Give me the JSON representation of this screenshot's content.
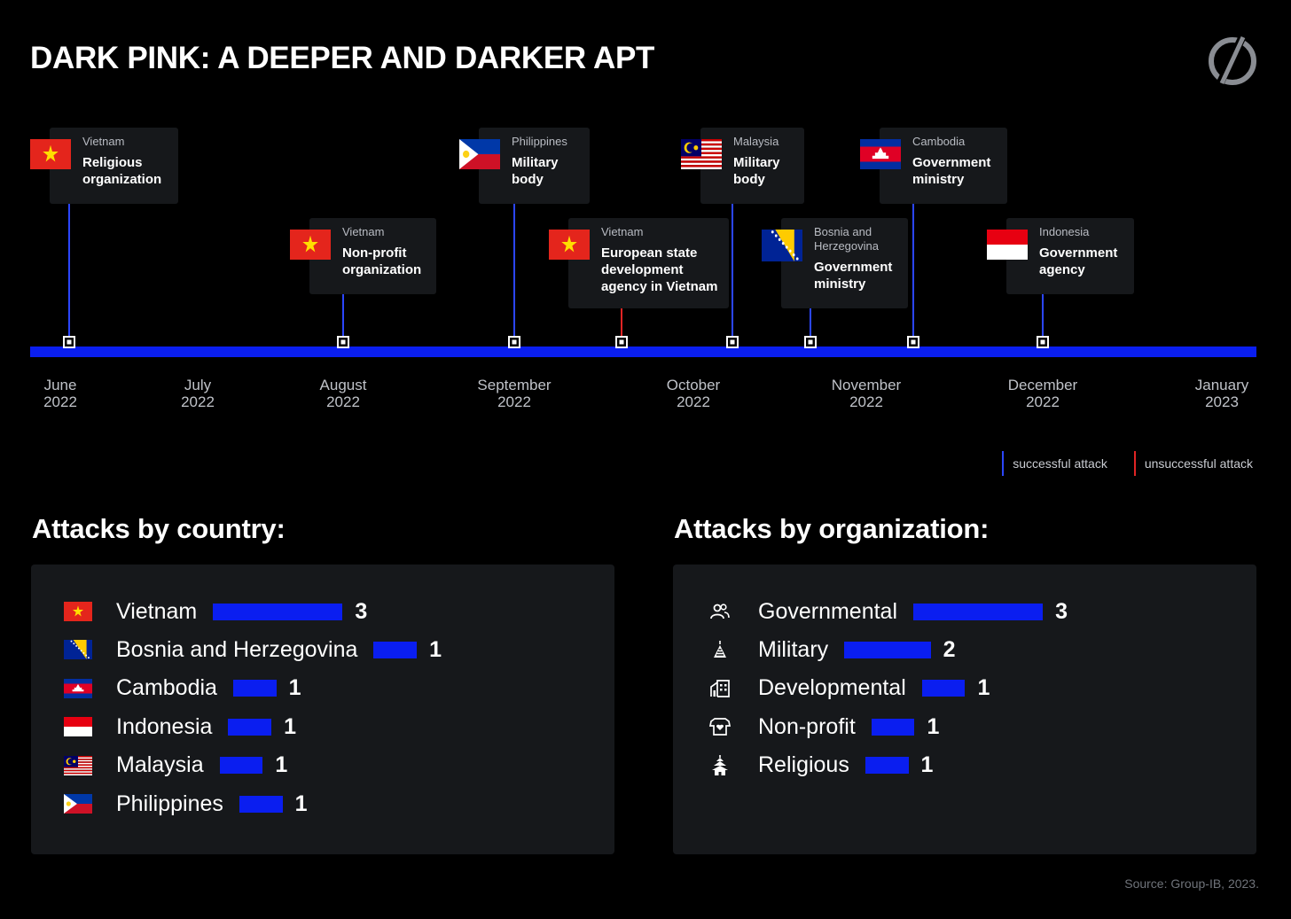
{
  "title": "DARK PINK: A DEEPER AND DARKER APT",
  "colors": {
    "background": "#000000",
    "timeline": "#0a1ef0",
    "successful": "#2b46ff",
    "unsuccessful": "#e02424",
    "card": "#16181b"
  },
  "timeline": {
    "months": [
      {
        "month": "June",
        "year": "2022"
      },
      {
        "month": "July",
        "year": "2022"
      },
      {
        "month": "August",
        "year": "2022"
      },
      {
        "month": "September",
        "year": "2022"
      },
      {
        "month": "October",
        "year": "2022"
      },
      {
        "month": "November",
        "year": "2022"
      },
      {
        "month": "December",
        "year": "2022"
      },
      {
        "month": "January",
        "year": "2023"
      }
    ],
    "events": [
      {
        "country": "Vietnam",
        "org": "Religious organization",
        "flag": "vietnam",
        "status": "successful",
        "date": "2022-06-03"
      },
      {
        "country": "Vietnam",
        "org": "Non-profit organization",
        "flag": "vietnam",
        "status": "successful",
        "date": "2022-08-01"
      },
      {
        "country": "Philippines",
        "org": "Military body",
        "flag": "philippines",
        "status": "successful",
        "date": "2022-09-01"
      },
      {
        "country": "Vietnam",
        "org": "European state development agency in Vietnam",
        "flag": "vietnam",
        "status": "unsuccessful",
        "date": "2022-09-19"
      },
      {
        "country": "Malaysia",
        "org": "Military body",
        "flag": "malaysia",
        "status": "successful",
        "date": "2022-10-08"
      },
      {
        "country": "Bosnia and Herzegovina",
        "org": "Government ministry",
        "flag": "bosnia",
        "status": "successful",
        "date": "2022-10-22"
      },
      {
        "country": "Cambodia",
        "org": "Government ministry",
        "flag": "cambodia",
        "status": "successful",
        "date": "2022-11-09"
      },
      {
        "country": "Indonesia",
        "org": "Government agency",
        "flag": "indonesia",
        "status": "successful",
        "date": "2022-12-01"
      }
    ]
  },
  "legend": {
    "successful": "successful attack",
    "unsuccessful": "unsuccessful attack"
  },
  "sections": {
    "country": "Attacks by country:",
    "organization": "Attacks by organization:"
  },
  "chart_data": [
    {
      "type": "bar",
      "title": "Attacks by country:",
      "categories": [
        "Vietnam",
        "Bosnia and Herzegovina",
        "Cambodia",
        "Indonesia",
        "Malaysia",
        "Philippines"
      ],
      "values": [
        3,
        1,
        1,
        1,
        1,
        1
      ],
      "icons": [
        "vietnam",
        "bosnia",
        "cambodia",
        "indonesia",
        "malaysia",
        "philippines"
      ]
    },
    {
      "type": "bar",
      "title": "Attacks by organization:",
      "categories": [
        "Governmental",
        "Military",
        "Developmental",
        "Non-profit",
        "Religious"
      ],
      "values": [
        3,
        2,
        1,
        1,
        1
      ],
      "icons": [
        "people-icon",
        "grenade-icon",
        "building-icon",
        "heart-shirt-icon",
        "temple-icon"
      ]
    }
  ],
  "source": "Source: Group-IB, 2023."
}
